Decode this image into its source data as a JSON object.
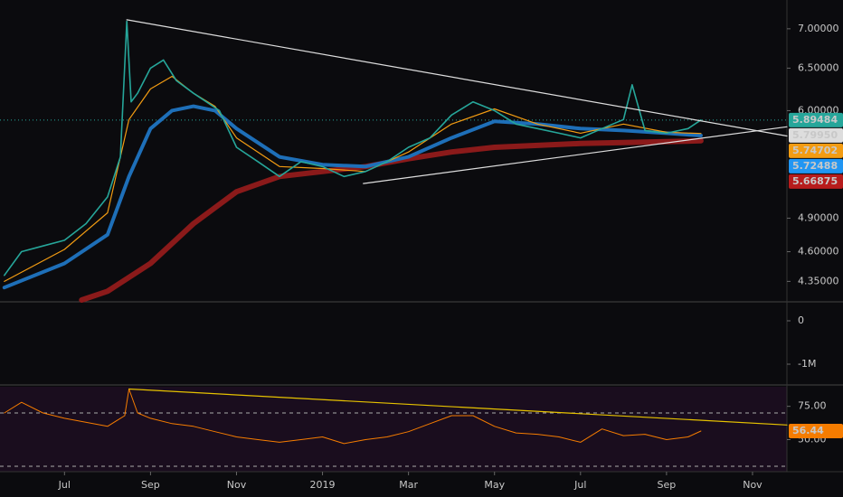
{
  "chart_data": [
    {
      "type": "line",
      "log_scale": true,
      "xlim": [
        -1.5,
        16.8
      ],
      "xticks": [
        {
          "value": 0,
          "label": "Jul"
        },
        {
          "value": 2,
          "label": "Sep"
        },
        {
          "value": 4,
          "label": "Nov"
        },
        {
          "value": 6,
          "label": "2019"
        },
        {
          "value": 8,
          "label": "Mar"
        },
        {
          "value": 10,
          "label": "May"
        },
        {
          "value": 12,
          "label": "Jul"
        },
        {
          "value": 14,
          "label": "Sep"
        },
        {
          "value": 16,
          "label": "Nov"
        }
      ],
      "ylim": [
        4.2,
        7.39
      ],
      "yticks": [
        {
          "value": 7,
          "label": "7.00000"
        },
        {
          "value": 6.5,
          "label": "6.50000"
        },
        {
          "value": 6,
          "label": "6.00000"
        },
        {
          "value": 4.9,
          "label": "4.90000"
        },
        {
          "value": 4.6,
          "label": "4.60000"
        },
        {
          "value": 4.35,
          "label": "4.35000"
        }
      ],
      "series": [
        {
          "color": "#26a69a",
          "width": 1.6,
          "x": [
            -1.4,
            -1.0,
            -0.5,
            0,
            0.5,
            1.0,
            1.3,
            1.45,
            1.55,
            1.7,
            2.0,
            2.3,
            2.6,
            3.0,
            3.3,
            3.6,
            4.0,
            4.5,
            5.0,
            5.5,
            6.0,
            6.5,
            7.0,
            7.5,
            8.0,
            8.5,
            9.0,
            9.5,
            10.0,
            10.5,
            11.0,
            11.5,
            12.0,
            12.5,
            13.0,
            13.2,
            13.5,
            14.0,
            14.5,
            14.8
          ],
          "values": [
            4.4,
            4.6,
            4.65,
            4.7,
            4.85,
            5.1,
            5.5,
            7.1,
            6.1,
            6.2,
            6.5,
            6.6,
            6.35,
            6.2,
            6.1,
            6.0,
            5.6,
            5.45,
            5.3,
            5.45,
            5.4,
            5.3,
            5.35,
            5.45,
            5.6,
            5.7,
            5.95,
            6.1,
            6.0,
            5.85,
            5.8,
            5.75,
            5.7,
            5.8,
            5.9,
            6.3,
            5.78,
            5.75,
            5.8,
            5.89484
          ]
        },
        {
          "color": "#f39c12",
          "width": 1.2,
          "x": [
            -1.4,
            0,
            1.0,
            1.5,
            2.0,
            2.5,
            3.0,
            3.5,
            4.0,
            5.0,
            6.0,
            7.0,
            8.0,
            9.0,
            10.0,
            11.0,
            12.0,
            13.0,
            14.0,
            14.8
          ],
          "values": [
            4.35,
            4.62,
            4.95,
            5.9,
            6.25,
            6.4,
            6.2,
            6.05,
            5.7,
            5.4,
            5.38,
            5.35,
            5.55,
            5.85,
            6.02,
            5.85,
            5.75,
            5.85,
            5.76,
            5.74702
          ]
        },
        {
          "color": "#1e6fb8",
          "width": 4,
          "x": [
            -1.4,
            0,
            1.0,
            1.5,
            2.0,
            2.5,
            3.0,
            3.5,
            4.0,
            5.0,
            6.0,
            7.0,
            8.0,
            9.0,
            10.0,
            11.0,
            12.0,
            13.0,
            14.0,
            14.8
          ],
          "values": [
            4.3,
            4.5,
            4.75,
            5.3,
            5.8,
            6.0,
            6.05,
            6.0,
            5.8,
            5.5,
            5.42,
            5.4,
            5.5,
            5.7,
            5.88,
            5.85,
            5.8,
            5.78,
            5.75,
            5.72488
          ]
        },
        {
          "color": "#8b1a1a",
          "width": 6,
          "x": [
            0.4,
            1.0,
            2.0,
            3.0,
            4.0,
            5.0,
            6.0,
            7.0,
            8.0,
            9.0,
            10.0,
            11.0,
            12.0,
            13.0,
            14.0,
            14.8
          ],
          "values": [
            4.2,
            4.27,
            4.5,
            4.85,
            5.15,
            5.3,
            5.35,
            5.4,
            5.48,
            5.55,
            5.6,
            5.62,
            5.64,
            5.65,
            5.66,
            5.66875
          ]
        }
      ],
      "trendlines": [
        {
          "color": "#dddddd",
          "x": [
            1.45,
            16.8
          ],
          "values": [
            7.12,
            5.72
          ]
        },
        {
          "color": "#dddddd",
          "x": [
            6.95,
            16.8
          ],
          "values": [
            5.23,
            5.82
          ]
        }
      ],
      "last_price_line": 5.89484,
      "price_labels": [
        {
          "value": 5.89484,
          "label": "5.89484",
          "color": "#26a69a",
          "text_color": "#000000"
        },
        {
          "value": 5.7995,
          "label": "5.79950",
          "color": "#dddddd",
          "text_color": "#000000"
        },
        {
          "value": 5.74702,
          "label": "5.74702",
          "color": "#f39c12",
          "text_color": "#000000"
        },
        {
          "value": 5.72488,
          "label": "5.72488",
          "color": "#2196f3",
          "text_color": "#ffffff"
        },
        {
          "value": 5.66875,
          "label": "5.66875",
          "color": "#b71c1c",
          "text_color": "#ffffff"
        }
      ]
    },
    {
      "type": "bar",
      "ylim": [
        -1458000,
        396000
      ],
      "yticks": [
        0,
        {
          "value": -1000000,
          "label": "-1M"
        }
      ]
    },
    {
      "type": "line",
      "ylim": [
        25.9,
        89.7
      ],
      "yticks": [
        {
          "value": 75,
          "label": "75.00"
        },
        {
          "value": 50,
          "label": "50.00"
        }
      ],
      "bands": [
        70,
        30
      ],
      "series": [
        {
          "color": "#f57c00",
          "width": 1,
          "x": [
            -1.4,
            -1.0,
            -0.5,
            0,
            1.0,
            1.4,
            1.5,
            1.7,
            2.0,
            2.5,
            3.0,
            3.5,
            4.0,
            4.5,
            5.0,
            5.5,
            6.0,
            6.5,
            7.0,
            7.5,
            8.0,
            8.5,
            9.0,
            9.5,
            10.0,
            10.5,
            11.0,
            11.5,
            12.0,
            12.5,
            13.0,
            13.5,
            14.0,
            14.5,
            14.8
          ],
          "values": [
            70,
            78,
            70,
            66,
            60,
            68,
            88,
            70,
            66,
            62,
            60,
            56,
            52,
            50,
            48,
            50,
            52,
            47,
            50,
            52,
            56,
            62,
            68,
            68,
            60,
            55,
            54,
            52,
            48,
            58,
            53,
            54,
            50,
            52,
            56.44
          ]
        }
      ],
      "trendlines": [
        {
          "color": "#e6c200",
          "x": [
            1.5,
            16.8
          ],
          "values": [
            88,
            61
          ]
        }
      ],
      "price_labels": [
        {
          "value": 56.44,
          "label": "56.44",
          "color": "#f57c00",
          "text_color": "#000000"
        }
      ]
    }
  ]
}
